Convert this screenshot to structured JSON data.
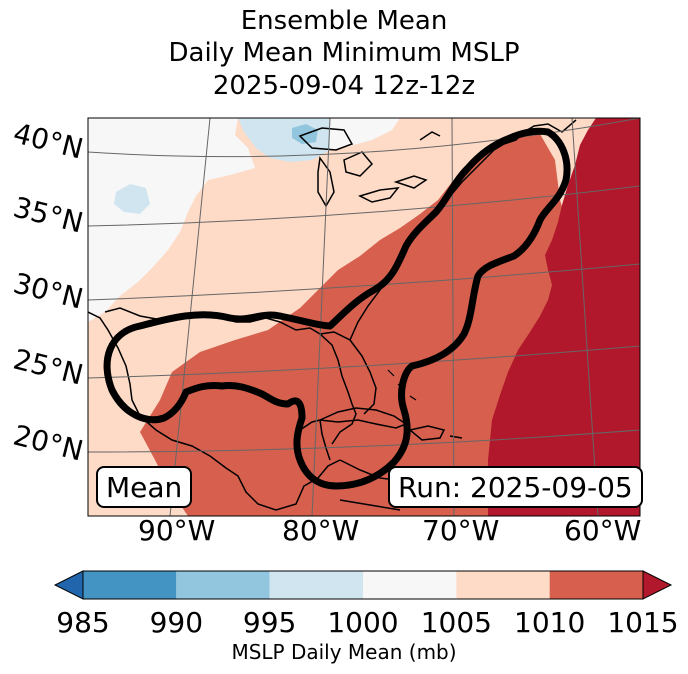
{
  "title": {
    "line1": "Ensemble Mean",
    "line2": "Daily Mean Minimum MSLP",
    "line3": "2025-09-04 12z-12z"
  },
  "map": {
    "lat_labels": [
      "40°N",
      "35°N",
      "30°N",
      "25°N",
      "20°N"
    ],
    "lon_labels": [
      "90°W",
      "80°W",
      "70°W",
      "60°W"
    ],
    "mean_label": "Mean",
    "run_label": "Run: 2025-09-05"
  },
  "colorbar": {
    "title": "MSLP Daily Mean (mb)",
    "ticks": [
      "985",
      "990",
      "995",
      "1000",
      "1005",
      "1010",
      "1015"
    ],
    "colors": {
      "below": "#2166ac",
      "985-990": "#4393c3",
      "990-995": "#92c5de",
      "995-1000": "#d1e5f0",
      "1000-1005": "#f7f7f7",
      "1005-1010": "#fddbc7",
      "1010-1015": "#d6604d",
      "above": "#b2182b"
    }
  }
}
